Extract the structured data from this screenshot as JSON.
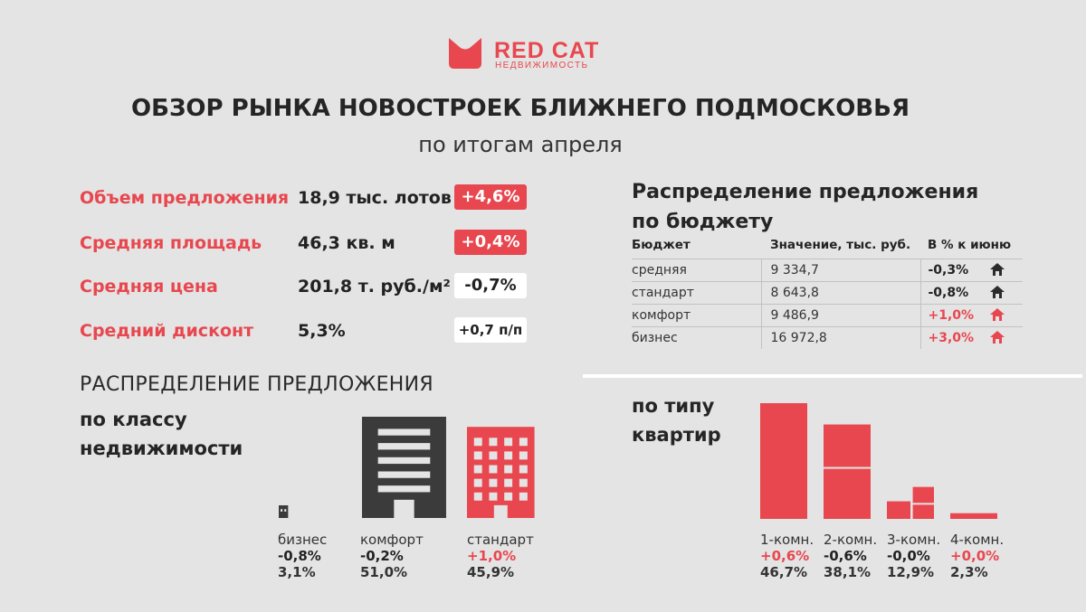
{
  "brand": {
    "name": "RED CAT",
    "sub": "НЕДВИЖИМОСТЬ",
    "color": "#e8474f"
  },
  "header": {
    "title": "ОБЗОР РЫНКА НОВОСТРОЕК БЛИЖНЕГО ПОДМОСКОВЬЯ",
    "subtitle": "по итогам апреля"
  },
  "kpis": [
    {
      "label": "Объем предложения",
      "value": "18,9 тыс. лотов",
      "change": "+4,6%",
      "style": "red"
    },
    {
      "label": "Средняя площадь",
      "value": "46,3 кв. м",
      "change": "+0,4%",
      "style": "red"
    },
    {
      "label": "Средняя цена",
      "value": "201,8 т. руб./м²",
      "change": "-0,7%",
      "style": "white"
    },
    {
      "label": "Средний дисконт",
      "value": "5,3%",
      "change": "+0,7 п/п",
      "style": "white"
    }
  ],
  "budget": {
    "title_line1": "Распределение предложения",
    "title_line2": "по бюджету",
    "headers": [
      "Бюджет",
      "Значение, тыс. руб.",
      "В % к июню"
    ],
    "rows": [
      {
        "segment": "средняя",
        "value": "9 334,7",
        "change": "-0,3%",
        "up": false
      },
      {
        "segment": "стандарт",
        "value": "8 643,8",
        "change": "-0,8%",
        "up": false
      },
      {
        "segment": "комфорт",
        "value": "9 486,9",
        "change": "+1,0%",
        "up": true
      },
      {
        "segment": "бизнес",
        "value": "16 972,8",
        "change": "+3,0%",
        "up": true
      }
    ]
  },
  "class_section": {
    "title": "РАСПРЕДЕЛЕНИЕ ПРЕДЛОЖЕНИЯ",
    "sub_line1": "по классу",
    "sub_line2": "недвижимости"
  },
  "apt_section": {
    "title_line1": "по типу",
    "title_line2": "квартир"
  },
  "chart_data": [
    {
      "type": "bar",
      "title": "Распределение предложения по классу недвижимости",
      "categories": [
        "бизнес",
        "комфорт",
        "стандарт"
      ],
      "values": [
        3.1,
        51.0,
        45.9
      ],
      "share_labels": [
        "3,1%",
        "51,0%",
        "45,9%"
      ],
      "changes": [
        "-0,8%",
        "-0,2%",
        "+1,0%"
      ],
      "colors": [
        "#3b3b3b",
        "#3b3b3b",
        "#e8474f"
      ],
      "unit": "%"
    },
    {
      "type": "bar",
      "title": "по типу квартир",
      "categories": [
        "1-комн.",
        "2-комн.",
        "3-комн.",
        "4-комн."
      ],
      "values": [
        46.7,
        38.1,
        12.9,
        2.3
      ],
      "share_labels": [
        "46,7%",
        "38,1%",
        "12,9%",
        "2,3%"
      ],
      "changes": [
        "+0,6%",
        "-0,6%",
        "-0,0%",
        "+0,0%"
      ],
      "color": "#e8474f",
      "unit": "%"
    }
  ]
}
